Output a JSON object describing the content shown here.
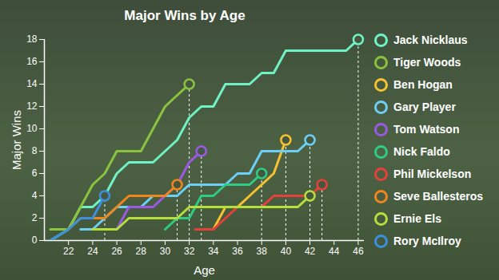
{
  "chart_data": {
    "type": "line",
    "title": "Major Wins by Age",
    "x_label": "Age",
    "y_label": "Major Wins",
    "xlim": [
      20,
      46.5
    ],
    "xticks": [
      22,
      24,
      26,
      28,
      30,
      32,
      34,
      36,
      38,
      40,
      42,
      44,
      46
    ],
    "ylim": [
      0,
      18
    ],
    "yticks": [
      0,
      2,
      4,
      6,
      8,
      10,
      12,
      14,
      16,
      18
    ],
    "grid": false,
    "legend": "right",
    "series": [
      {
        "name": "Jack Nicklaus",
        "color": "#6ff2c6",
        "x": [
          20.5,
          22,
          23,
          24,
          25,
          26,
          27,
          28,
          29,
          30,
          31,
          32,
          33,
          34,
          35,
          36,
          37,
          38,
          39,
          40,
          41,
          42,
          43,
          44,
          45,
          46
        ],
        "values": [
          0,
          1,
          3,
          3,
          4,
          6,
          7,
          7,
          7,
          8,
          9,
          11,
          12,
          12,
          14,
          14,
          14,
          15,
          15,
          17,
          17,
          17,
          17,
          17,
          17,
          18
        ]
      },
      {
        "name": "Tiger Woods",
        "color": "#8ac43f",
        "x": [
          20.5,
          22,
          23,
          24,
          25,
          26,
          27,
          28,
          29,
          30,
          31,
          32
        ],
        "values": [
          1,
          1,
          3,
          5,
          6,
          8,
          8,
          8,
          10,
          12,
          13,
          14
        ]
      },
      {
        "name": "Ben Hogan",
        "color": "#f5c230",
        "x": [
          33,
          34,
          35,
          36,
          37,
          38,
          39,
          40
        ],
        "values": [
          1,
          1,
          3,
          3,
          4,
          5,
          6,
          9
        ]
      },
      {
        "name": "Gary Player",
        "color": "#6ccff6",
        "x": [
          23,
          24,
          25,
          26,
          27,
          28,
          29,
          30,
          31,
          32,
          33,
          34,
          35,
          36,
          37,
          38,
          39,
          40,
          41,
          42
        ],
        "values": [
          1,
          1,
          2,
          3,
          3,
          3,
          4,
          4,
          4,
          5,
          5,
          5,
          5,
          6,
          6,
          8,
          8,
          8,
          8,
          9
        ]
      },
      {
        "name": "Tom Watson",
        "color": "#9a59e6",
        "x": [
          25,
          26,
          27,
          28,
          29,
          30,
          31,
          32,
          33
        ],
        "values": [
          1,
          1,
          3,
          3,
          3,
          4,
          5,
          7,
          8
        ]
      },
      {
        "name": "Nick Faldo",
        "color": "#2ecc84",
        "x": [
          30,
          31,
          32,
          33,
          34,
          35,
          36,
          37,
          38
        ],
        "values": [
          1,
          2,
          2,
          4,
          4,
          5,
          5,
          5,
          6
        ]
      },
      {
        "name": "Phil Mickelson",
        "color": "#e8403a",
        "x": [
          32.5,
          33,
          34,
          35,
          36,
          37,
          38,
          39,
          40,
          41,
          42,
          43
        ],
        "values": [
          1,
          1,
          1,
          2,
          3,
          3,
          3,
          4,
          4,
          4,
          4,
          5
        ]
      },
      {
        "name": "Seve Ballesteros",
        "color": "#f0861c",
        "x": [
          22,
          23,
          24,
          25,
          26,
          27,
          28,
          29,
          30,
          31
        ],
        "values": [
          1,
          2,
          2,
          2,
          3,
          4,
          4,
          4,
          4,
          5
        ]
      },
      {
        "name": "Ernie Els",
        "color": "#b5e03b",
        "x": [
          24,
          25,
          26,
          27,
          28,
          29,
          30,
          31,
          32,
          33,
          34,
          35,
          36,
          37,
          38,
          39,
          40,
          41,
          42
        ],
        "values": [
          1,
          1,
          1,
          2,
          2,
          2,
          2,
          2,
          3,
          3,
          3,
          3,
          3,
          3,
          3,
          3,
          3,
          3,
          4
        ]
      },
      {
        "name": "Rory McIlroy",
        "color": "#3d8fe0",
        "x": [
          20.5,
          22,
          23,
          24,
          25
        ],
        "values": [
          0,
          1,
          2,
          2,
          4
        ]
      }
    ]
  }
}
